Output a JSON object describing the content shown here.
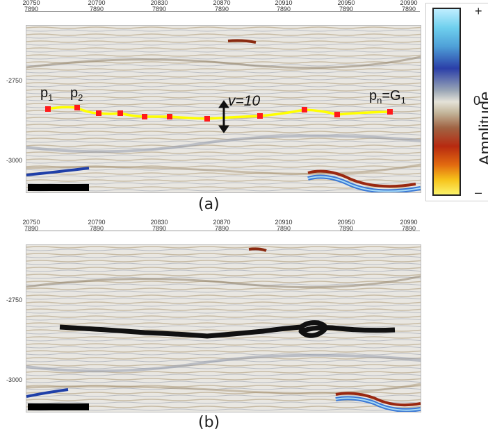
{
  "ruler_ticks": [
    {
      "top": "20750",
      "bottom": "7890"
    },
    {
      "top": "20790",
      "bottom": "7890"
    },
    {
      "top": "20830",
      "bottom": "7890"
    },
    {
      "top": "20870",
      "bottom": "7890"
    },
    {
      "top": "20910",
      "bottom": "7890"
    },
    {
      "top": "20950",
      "bottom": "7890"
    },
    {
      "top": "20990",
      "bottom": "7890"
    }
  ],
  "y_ticks": [
    "-2750",
    "-3000"
  ],
  "panel_a": {
    "caption": "(a)",
    "point_labels": {
      "p1": "p",
      "p1_sub": "1",
      "p2": "p",
      "p2_sub": "2",
      "pn": "p",
      "pn_sub": "n",
      "eq": "=G",
      "eq_sub": "1"
    },
    "v_label": "v=10"
  },
  "panel_b": {
    "caption": "(b)"
  },
  "colorbar": {
    "title": "Amplitude",
    "plus": "+",
    "zero": "0",
    "minus": "–"
  },
  "colors": {
    "horizon_line": "#ffff00",
    "control_point": "#ff1a1a",
    "picked_horizon": "#111111"
  }
}
